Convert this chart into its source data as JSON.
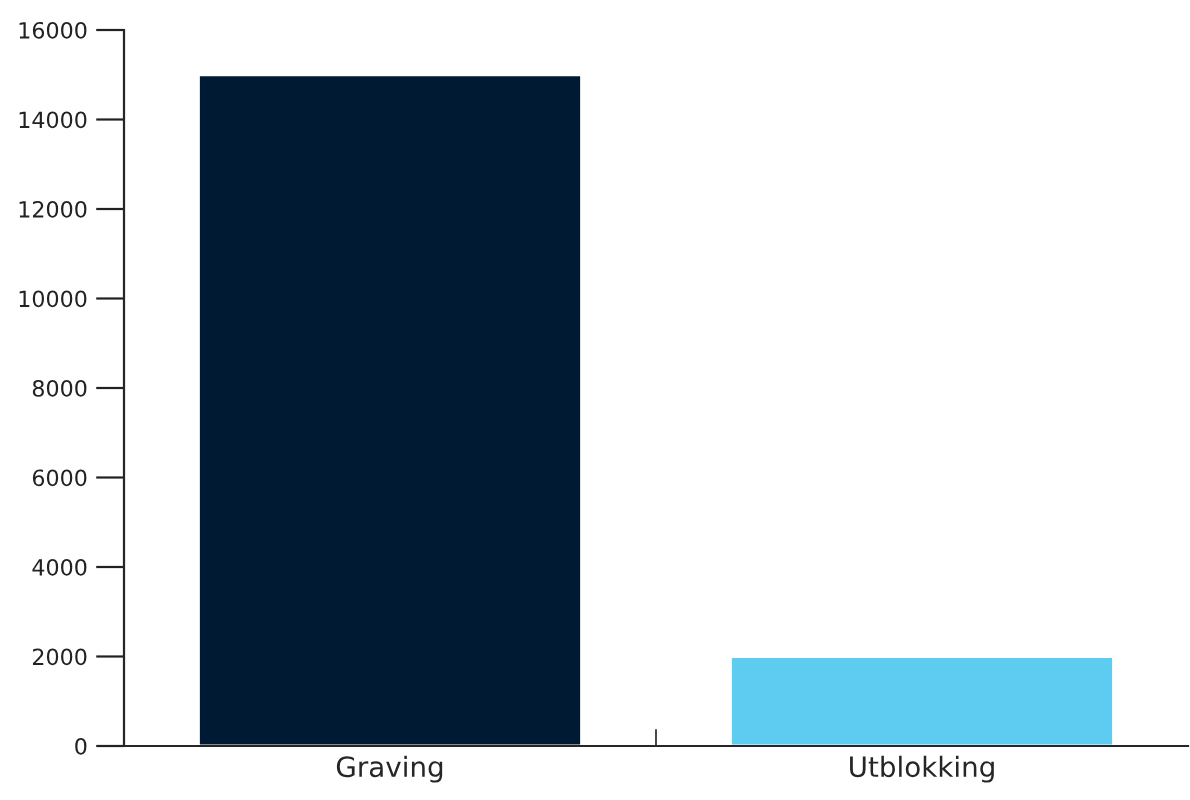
{
  "chart_data": {
    "type": "bar",
    "categories": [
      "Graving",
      "Utblokking"
    ],
    "values": [
      15000,
      2000
    ],
    "colors": [
      "#001a33",
      "#5ecbf0"
    ],
    "ylim": [
      0,
      16000
    ],
    "yticks": [
      0,
      2000,
      4000,
      6000,
      8000,
      10000,
      12000,
      14000,
      16000
    ],
    "grid": false,
    "legend": false
  }
}
